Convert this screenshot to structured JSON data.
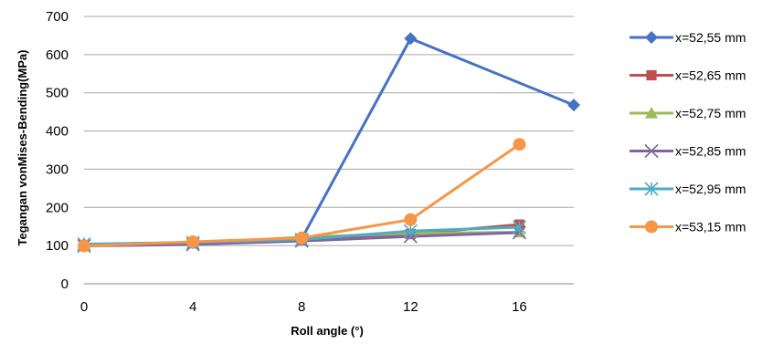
{
  "chart_data": {
    "type": "line",
    "title": "",
    "xlabel": "Roll angle (°)",
    "ylabel": "Tegangan vonMises-Bending(MPa)",
    "xlim": [
      0,
      18
    ],
    "ylim": [
      0,
      700
    ],
    "xticks": [
      "0",
      "4",
      "8",
      "12",
      "16"
    ],
    "xtick_values": [
      0,
      4,
      8,
      12,
      16
    ],
    "yticks": [
      "0",
      "100",
      "200",
      "300",
      "400",
      "500",
      "600",
      "700"
    ],
    "ytick_values": [
      0,
      100,
      200,
      300,
      400,
      500,
      600,
      700
    ],
    "grid": "horizontal",
    "legend_position": "right",
    "series": [
      {
        "name": "x=52,55 mm",
        "color": "#4472C4",
        "marker": "diamond",
        "x": [
          0,
          4,
          8,
          12,
          18
        ],
        "y": [
          103,
          108,
          118,
          642,
          468
        ]
      },
      {
        "name": "x=52,65 mm",
        "color": "#C0504D",
        "marker": "square",
        "x": [
          0,
          4,
          8,
          12,
          16
        ],
        "y": [
          100,
          107,
          115,
          130,
          155
        ]
      },
      {
        "name": "x=52,75 mm",
        "color": "#9BBB59",
        "marker": "triangle",
        "x": [
          0,
          4,
          8,
          12,
          16
        ],
        "y": [
          101,
          106,
          122,
          132,
          135
        ]
      },
      {
        "name": "x=52,85 mm",
        "color": "#8064A2",
        "marker": "x",
        "x": [
          0,
          4,
          8,
          12,
          16
        ],
        "y": [
          99,
          103,
          112,
          124,
          134
        ]
      },
      {
        "name": "x=52,95 mm",
        "color": "#4BACC6",
        "marker": "star",
        "x": [
          0,
          4,
          8,
          12,
          16
        ],
        "y": [
          104,
          108,
          116,
          138,
          148
        ]
      },
      {
        "name": "x=53,15 mm",
        "color": "#F79646",
        "marker": "circle",
        "x": [
          0,
          4,
          8,
          12,
          16
        ],
        "y": [
          99,
          110,
          120,
          168,
          365
        ]
      }
    ]
  }
}
